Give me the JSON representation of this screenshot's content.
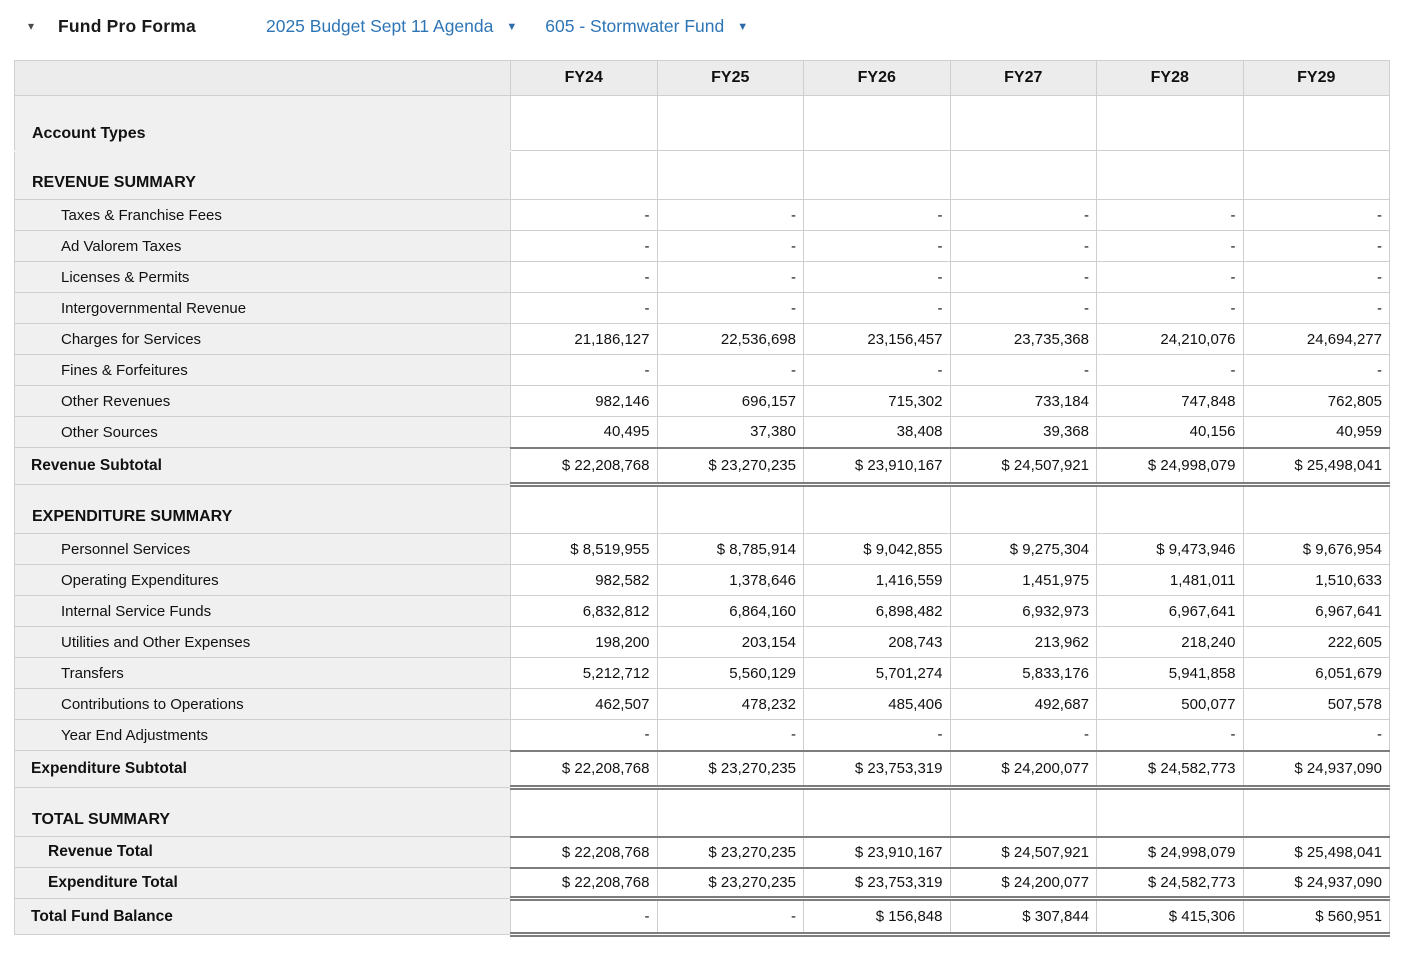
{
  "header": {
    "collapse_caret": "▾",
    "title": "Fund Pro Forma",
    "budget_dropdown": "2025 Budget Sept 11 Agenda",
    "fund_dropdown": "605 - Stormwater Fund",
    "dropdown_caret": "▼"
  },
  "colors": {
    "link_blue": "#2e75b6",
    "header_row_bg": "#ececec",
    "label_column_bg": "#f0f0f0",
    "border_light": "#cfcfcf",
    "border_dark": "#7d7d7d"
  },
  "table": {
    "columns": [
      "FY24",
      "FY25",
      "FY26",
      "FY27",
      "FY28",
      "FY29"
    ],
    "rows": [
      {
        "label": "Account Types",
        "type": "section_first",
        "values": [
          "",
          "",
          "",
          "",
          "",
          ""
        ]
      },
      {
        "label": "REVENUE SUMMARY",
        "type": "section",
        "values": [
          "",
          "",
          "",
          "",
          "",
          ""
        ]
      },
      {
        "label": "Taxes & Franchise Fees",
        "type": "detail",
        "values": [
          "-",
          "-",
          "-",
          "-",
          "-",
          "-"
        ]
      },
      {
        "label": "Ad Valorem Taxes",
        "type": "detail",
        "values": [
          "-",
          "-",
          "-",
          "-",
          "-",
          "-"
        ]
      },
      {
        "label": "Licenses & Permits",
        "type": "detail",
        "values": [
          "-",
          "-",
          "-",
          "-",
          "-",
          "-"
        ]
      },
      {
        "label": "Intergovernmental Revenue",
        "type": "detail",
        "values": [
          "-",
          "-",
          "-",
          "-",
          "-",
          "-"
        ]
      },
      {
        "label": "Charges for Services",
        "type": "detail",
        "values": [
          "21,186,127",
          "22,536,698",
          "23,156,457",
          "23,735,368",
          "24,210,076",
          "24,694,277"
        ]
      },
      {
        "label": "Fines & Forfeitures",
        "type": "detail",
        "values": [
          "-",
          "-",
          "-",
          "-",
          "-",
          "-"
        ]
      },
      {
        "label": "Other Revenues",
        "type": "detail",
        "values": [
          "982,146",
          "696,157",
          "715,302",
          "733,184",
          "747,848",
          "762,805"
        ]
      },
      {
        "label": "Other Sources",
        "type": "detail",
        "values": [
          "40,495",
          "37,380",
          "38,408",
          "39,368",
          "40,156",
          "40,959"
        ]
      },
      {
        "label": "Revenue Subtotal",
        "type": "subtotal",
        "values": [
          "$ 22,208,768",
          "$ 23,270,235",
          "$ 23,910,167",
          "$ 24,507,921",
          "$ 24,998,079",
          "$ 25,498,041"
        ]
      },
      {
        "label": "EXPENDITURE SUMMARY",
        "type": "section",
        "values": [
          "",
          "",
          "",
          "",
          "",
          ""
        ]
      },
      {
        "label": "Personnel Services",
        "type": "detail",
        "values": [
          "$ 8,519,955",
          "$ 8,785,914",
          "$ 9,042,855",
          "$ 9,275,304",
          "$ 9,473,946",
          "$ 9,676,954"
        ]
      },
      {
        "label": "Operating Expenditures",
        "type": "detail",
        "values": [
          "982,582",
          "1,378,646",
          "1,416,559",
          "1,451,975",
          "1,481,011",
          "1,510,633"
        ]
      },
      {
        "label": "Internal Service Funds",
        "type": "detail",
        "values": [
          "6,832,812",
          "6,864,160",
          "6,898,482",
          "6,932,973",
          "6,967,641",
          "6,967,641"
        ]
      },
      {
        "label": "Utilities and Other Expenses",
        "type": "detail",
        "values": [
          "198,200",
          "203,154",
          "208,743",
          "213,962",
          "218,240",
          "222,605"
        ]
      },
      {
        "label": "Transfers",
        "type": "detail",
        "values": [
          "5,212,712",
          "5,560,129",
          "5,701,274",
          "5,833,176",
          "5,941,858",
          "6,051,679"
        ]
      },
      {
        "label": "Contributions to Operations",
        "type": "detail",
        "values": [
          "462,507",
          "478,232",
          "485,406",
          "492,687",
          "500,077",
          "507,578"
        ]
      },
      {
        "label": "Year End Adjustments",
        "type": "detail",
        "values": [
          "-",
          "-",
          "-",
          "-",
          "-",
          "-"
        ]
      },
      {
        "label": "Expenditure Subtotal",
        "type": "subtotal",
        "values": [
          "$ 22,208,768",
          "$ 23,270,235",
          "$ 23,753,319",
          "$ 24,200,077",
          "$ 24,582,773",
          "$ 24,937,090"
        ]
      },
      {
        "label": "TOTAL SUMMARY",
        "type": "section",
        "values": [
          "",
          "",
          "",
          "",
          "",
          ""
        ]
      },
      {
        "label": "Revenue Total",
        "type": "total",
        "values": [
          "$ 22,208,768",
          "$ 23,270,235",
          "$ 23,910,167",
          "$ 24,507,921",
          "$ 24,998,079",
          "$ 25,498,041"
        ]
      },
      {
        "label": "Expenditure Total",
        "type": "total_double",
        "values": [
          "$ 22,208,768",
          "$ 23,270,235",
          "$ 23,753,319",
          "$ 24,200,077",
          "$ 24,582,773",
          "$ 24,937,090"
        ]
      },
      {
        "label": "Total Fund Balance",
        "type": "grand",
        "values": [
          "-",
          "-",
          "$ 156,848",
          "$ 307,844",
          "$ 415,306",
          "$ 560,951"
        ]
      }
    ]
  }
}
